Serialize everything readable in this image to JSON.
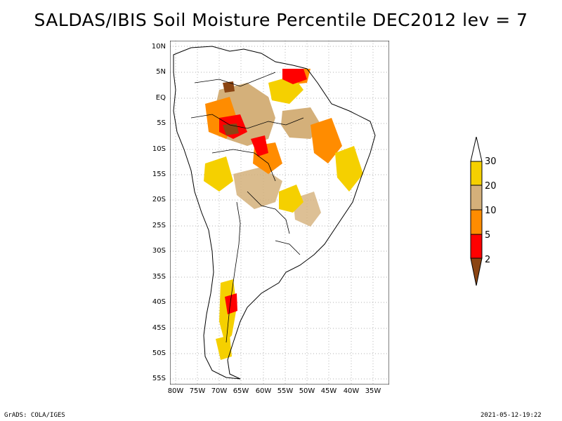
{
  "title": "SALDAS/IBIS Soil Moisture Percentile DEC2012 lev = 7",
  "map": {
    "region": "South America",
    "lat_ticks": [
      "10N",
      "5N",
      "EQ",
      "5S",
      "10S",
      "15S",
      "20S",
      "25S",
      "30S",
      "35S",
      "40S",
      "45S",
      "50S",
      "55S"
    ],
    "lon_ticks": [
      "80W",
      "75W",
      "70W",
      "65W",
      "60W",
      "55W",
      "50W",
      "45W",
      "40W",
      "35W"
    ]
  },
  "colorbar": {
    "labels": [
      "30",
      "20",
      "10",
      "5",
      "2"
    ],
    "colors": {
      "above_30": "#ffffff",
      "20_30": "#f5d000",
      "10_20": "#d4b07a",
      "5_10": "#ff8c00",
      "2_5": "#ff0000",
      "below_2": "#8b4513"
    }
  },
  "footer": {
    "left": "GrADS: COLA/IGES",
    "right": "2021-05-12-19:22"
  }
}
